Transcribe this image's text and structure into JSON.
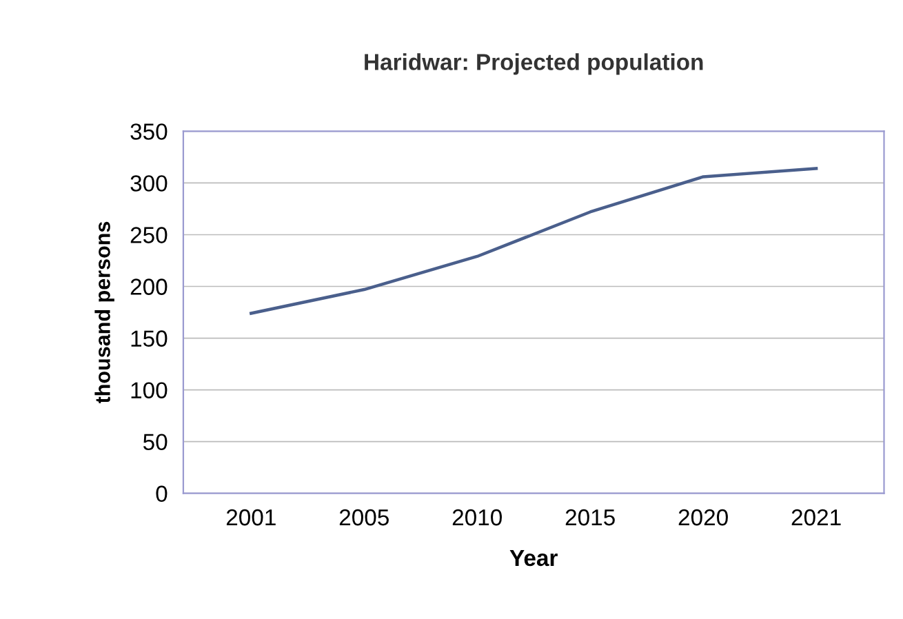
{
  "chart_data": {
    "type": "line",
    "title": "Haridwar: Projected population",
    "xlabel": "Year",
    "ylabel": "thousand persons",
    "categories": [
      "2001",
      "2005",
      "2010",
      "2015",
      "2020",
      "2021"
    ],
    "series": [
      {
        "color": "#4a5f8c",
        "values": [
          174,
          197,
          229,
          272,
          306,
          314
        ]
      }
    ],
    "ylim": [
      0,
      350
    ],
    "yticks": [
      0,
      50,
      100,
      150,
      200,
      250,
      300,
      350
    ],
    "grid": "y",
    "legend": false
  }
}
